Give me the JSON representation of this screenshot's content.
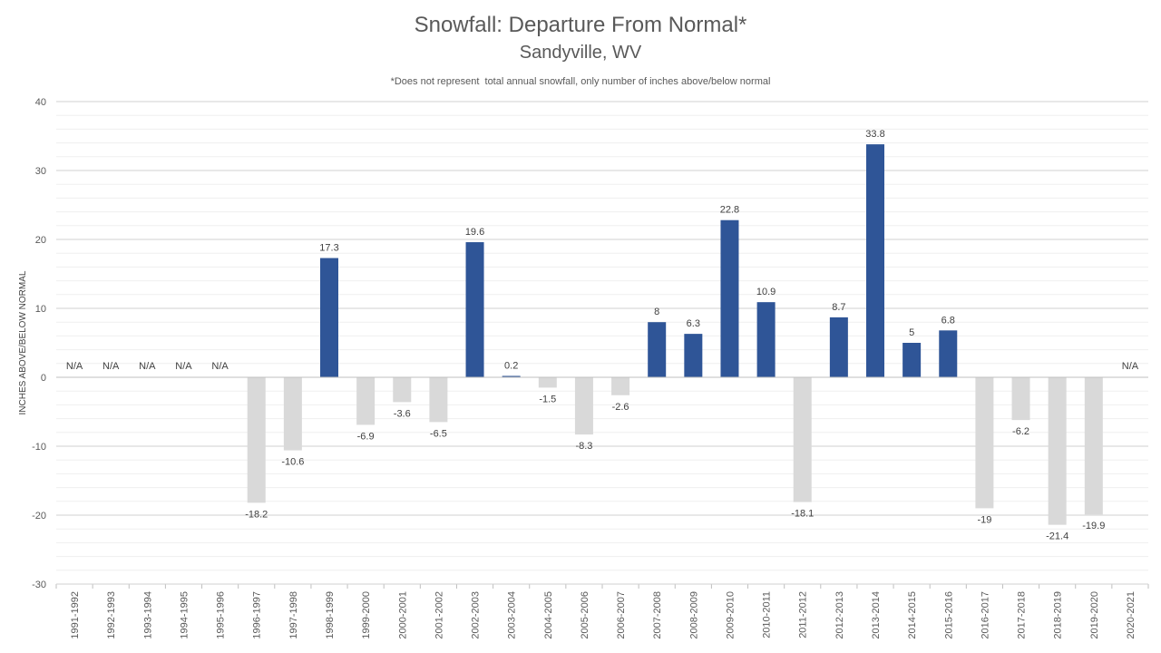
{
  "chart_data": {
    "type": "bar",
    "title": "Snowfall: Departure From Normal*",
    "subtitle": "Sandyville, WV",
    "note": "*Does not represent  total annual snowfall, only number of inches above/below normal",
    "ylabel": "INCHES ABOVE/BELOW NORMAL",
    "xlabel": "",
    "ylim": [
      -30,
      40
    ],
    "yticks": [
      40,
      30,
      20,
      10,
      0,
      -10,
      -20,
      -30
    ],
    "grid": true,
    "legend": "none",
    "colors": {
      "positive": "#2F5597",
      "negative": "#D9D9D9",
      "grid": "#D9D9D9"
    },
    "missing_label": "N/A",
    "categories": [
      "1991-1992",
      "1992-1993",
      "1993-1994",
      "1994-1995",
      "1995-1996",
      "1996-1997",
      "1997-1998",
      "1998-1999",
      "1999-2000",
      "2000-2001",
      "2001-2002",
      "2002-2003",
      "2003-2004",
      "2004-2005",
      "2005-2006",
      "2006-2007",
      "2007-2008",
      "2008-2009",
      "2009-2010",
      "2010-2011",
      "2011-2012",
      "2012-2013",
      "2013-2014",
      "2014-2015",
      "2015-2016",
      "2016-2017",
      "2017-2018",
      "2018-2019",
      "2019-2020",
      "2020-2021"
    ],
    "values": [
      null,
      null,
      null,
      null,
      null,
      -18.2,
      -10.6,
      17.3,
      -6.9,
      -3.6,
      -6.5,
      19.6,
      0.2,
      -1.5,
      -8.3,
      -2.6,
      8,
      6.3,
      22.8,
      10.9,
      -18.1,
      8.7,
      33.8,
      5,
      6.8,
      -19,
      -6.2,
      -21.4,
      -19.9,
      null
    ]
  }
}
